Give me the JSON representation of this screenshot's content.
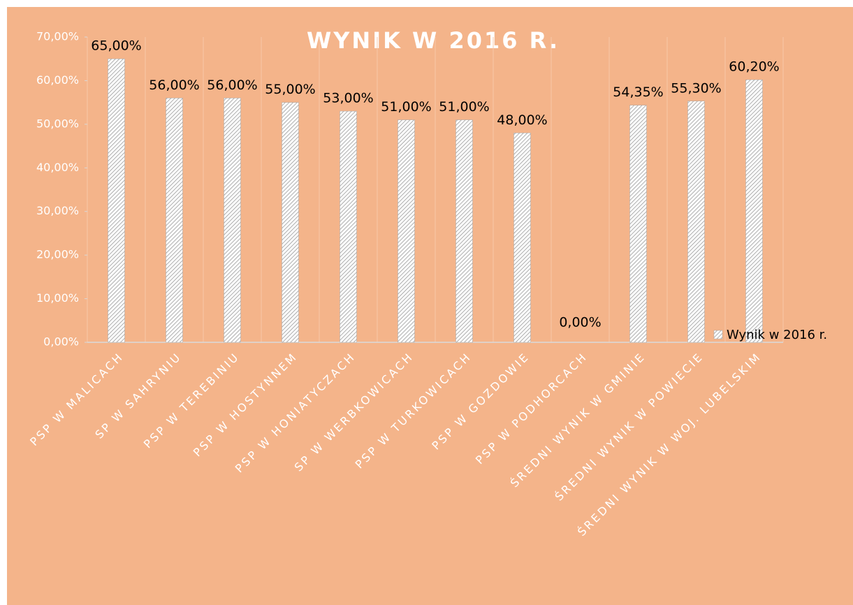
{
  "chart_data": {
    "type": "bar",
    "title": "WYNIK W 2016 R.",
    "categories": [
      "PSP W MALICACH",
      "SP W SAHRYNIU",
      "PSP W TEREBINIU",
      "PSP W HOSTYNNEM",
      "PSP W HONIATYCZACH",
      "SP W WERBKOWICACH",
      "PSP W TURKOWICACH",
      "PSP W GOZDOWIE",
      "PSP W PODHORCACH",
      "ŚREDNI WYNIK W GMINIE",
      "ŚREDNI WYNIK W POWIECIE",
      "ŚREDNI WYNIK W WOJ. LUBELSKIM"
    ],
    "series": [
      {
        "name": "Wynik w 2016 r.",
        "color": "#a6a6a6",
        "values": [
          65,
          56,
          56,
          55,
          53,
          51,
          51,
          48,
          0,
          54.35,
          55.3,
          60.2
        ],
        "value_labels": [
          "65,00%",
          "56,00%",
          "56,00%",
          "55,00%",
          "53,00%",
          "51,00%",
          "51,00%",
          "48,00%",
          "0,00%",
          "54,35%",
          "55,30%",
          "60,20%"
        ]
      }
    ],
    "ylim": [
      0,
      70
    ],
    "yticks": [
      {
        "value": 0,
        "label": "0,00%"
      },
      {
        "value": 10,
        "label": "10,00%"
      },
      {
        "value": 20,
        "label": "20,00%"
      },
      {
        "value": 30,
        "label": "30,00%"
      },
      {
        "value": 40,
        "label": "40,00%"
      },
      {
        "value": 50,
        "label": "50,00%"
      },
      {
        "value": 60,
        "label": "60,00%"
      },
      {
        "value": 70,
        "label": "70,00%"
      }
    ],
    "legend": "right"
  }
}
